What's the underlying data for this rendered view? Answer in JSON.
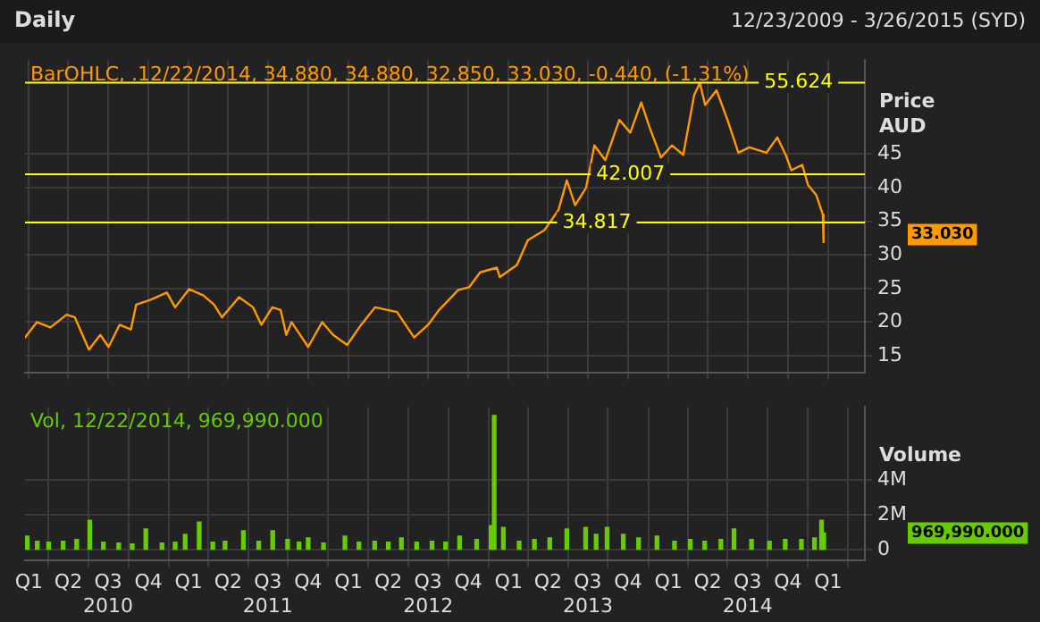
{
  "chart_data": [
    {
      "type": "line",
      "title": "Daily",
      "subtitle": "12/23/2009 - 3/26/2015 (SYD)",
      "ylabel": "Price\nAUD",
      "x": [
        "2009-12-23",
        "2010-01-19",
        "2010-02-19",
        "2010-03-28",
        "2010-04-16",
        "2010-05-18",
        "2010-06-13",
        "2010-07-02",
        "2010-07-27",
        "2010-08-22",
        "2010-09-03",
        "2010-10-05",
        "2010-11-12",
        "2010-12-01",
        "2011-01-02",
        "2011-02-03",
        "2011-02-28",
        "2011-03-18",
        "2011-04-26",
        "2011-05-28",
        "2011-06-16",
        "2011-07-11",
        "2011-07-30",
        "2011-08-12",
        "2011-08-24",
        "2011-10-01",
        "2011-11-02",
        "2011-11-27",
        "2011-12-29",
        "2012-01-30",
        "2012-03-02",
        "2012-04-21",
        "2012-05-30",
        "2012-07-01",
        "2012-07-26",
        "2012-09-08",
        "2012-10-03",
        "2012-10-28",
        "2012-12-05",
        "2012-12-12",
        "2013-01-20",
        "2013-02-14",
        "2013-03-24",
        "2013-04-25",
        "2013-05-14",
        "2013-06-02",
        "2013-06-27",
        "2013-07-16",
        "2013-08-10",
        "2013-09-11",
        "2013-10-06",
        "2013-10-31",
        "2013-11-19",
        "2013-12-15",
        "2014-01-09",
        "2014-02-04",
        "2014-03-01",
        "2014-03-14",
        "2014-03-26",
        "2014-04-21",
        "2014-05-16",
        "2014-06-10",
        "2014-07-05",
        "2014-08-13",
        "2014-09-07",
        "2014-09-26",
        "2014-10-09",
        "2014-11-03",
        "2014-11-16",
        "2014-12-05",
        "2014-12-20",
        "2014-12-21",
        "2014-12-22"
      ],
      "series": [
        {
          "color": "#ff9900",
          "values": [
            17.7,
            20.0,
            19.2,
            21.1,
            20.7,
            15.9,
            18.1,
            16.3,
            19.6,
            18.9,
            22.6,
            23.3,
            24.4,
            22.2,
            24.9,
            24.0,
            22.6,
            20.7,
            23.7,
            22.2,
            19.6,
            22.2,
            21.8,
            18.1,
            20.0,
            16.3,
            20.0,
            18.1,
            16.6,
            19.6,
            22.2,
            21.5,
            17.7,
            19.6,
            21.8,
            24.8,
            25.2,
            27.4,
            28.1,
            26.7,
            28.5,
            32.2,
            33.7,
            36.7,
            41.1,
            37.4,
            40.0,
            46.3,
            44.1,
            50.1,
            48.2,
            52.7,
            49.0,
            44.5,
            46.3,
            44.9,
            53.8,
            55.6,
            52.3,
            54.5,
            50.1,
            45.2,
            46.0,
            45.2,
            47.5,
            44.9,
            42.6,
            43.4,
            40.4,
            38.9,
            36.0,
            31.9,
            33.03
          ]
        }
      ],
      "xlim": [
        "2009-12-23",
        "2015-03-26"
      ],
      "xticks": [
        {
          "value": "2010-01-01",
          "label": null
        },
        {
          "value": "2010-04-01",
          "label": null
        },
        {
          "value": "2010-07-01",
          "label": null
        },
        {
          "value": "2010-10-01",
          "label": null
        },
        {
          "value": "2011-01-01",
          "label": null
        },
        {
          "value": "2011-04-01",
          "label": null
        },
        {
          "value": "2011-07-01",
          "label": null
        },
        {
          "value": "2011-10-01",
          "label": null
        },
        {
          "value": "2012-01-01",
          "label": null
        },
        {
          "value": "2012-04-01",
          "label": null
        },
        {
          "value": "2012-07-01",
          "label": null
        },
        {
          "value": "2012-10-01",
          "label": null
        },
        {
          "value": "2013-01-01",
          "label": null
        },
        {
          "value": "2013-04-01",
          "label": null
        },
        {
          "value": "2013-07-01",
          "label": null
        },
        {
          "value": "2013-10-01",
          "label": null
        },
        {
          "value": "2014-01-01",
          "label": null
        },
        {
          "value": "2014-04-01",
          "label": null
        },
        {
          "value": "2014-07-01",
          "label": null
        },
        {
          "value": "2014-10-01",
          "label": null
        },
        {
          "value": "2015-01-01",
          "label": null
        }
      ],
      "ylim": [
        12.5,
        59
      ],
      "yticks": [
        15,
        20,
        25,
        30,
        35,
        40,
        45
      ],
      "tick_labels": "y",
      "grid": true,
      "legend": false,
      "marker": "none",
      "line_style": "solid",
      "ref_lines": [
        {
          "axis": "y",
          "value": 55.624,
          "label": "55.624",
          "color": "#ffff00"
        },
        {
          "axis": "y",
          "value": 42.007,
          "label": "42.007",
          "color": "#ffff00"
        },
        {
          "axis": "y",
          "value": 34.817,
          "label": "34.817",
          "color": "#ffff00"
        }
      ],
      "annotations": [
        "BarOHLC, .12/22/2014, 34.880, 34.880, 32.850, 33.030, -0.440, (-1.31%)",
        "33.030"
      ]
    },
    {
      "type": "bar",
      "ylabel": "Volume",
      "x": [
        "2009-12-28",
        "2010-01-20",
        "2010-02-15",
        "2010-03-20",
        "2010-04-20",
        "2010-05-20",
        "2010-06-20",
        "2010-07-25",
        "2010-08-25",
        "2010-09-25",
        "2010-11-01",
        "2010-12-01",
        "2010-12-24",
        "2011-01-25",
        "2011-02-25",
        "2011-03-25",
        "2011-05-06",
        "2011-06-10",
        "2011-07-12",
        "2011-08-15",
        "2011-09-10",
        "2011-10-01",
        "2011-11-05",
        "2011-12-24",
        "2012-01-25",
        "2012-03-01",
        "2012-04-01",
        "2012-05-01",
        "2012-06-05",
        "2012-07-10",
        "2012-08-10",
        "2012-09-11",
        "2012-10-20",
        "2012-11-22",
        "2012-11-29",
        "2012-12-20",
        "2013-01-25",
        "2013-03-01",
        "2013-04-05",
        "2013-05-14",
        "2013-06-26",
        "2013-07-20",
        "2013-08-14",
        "2013-09-20",
        "2013-10-25",
        "2013-12-06",
        "2014-01-15",
        "2014-02-20",
        "2014-03-25",
        "2014-05-01",
        "2014-05-31",
        "2014-07-10",
        "2014-08-20",
        "2014-09-25",
        "2014-11-01",
        "2014-12-01",
        "2014-12-17",
        "2014-12-22"
      ],
      "series": [
        {
          "color": "#66cc00",
          "values": [
            800000,
            500000,
            450000,
            500000,
            600000,
            1700000,
            450000,
            400000,
            350000,
            1200000,
            400000,
            450000,
            900000,
            1600000,
            450000,
            500000,
            1100000,
            500000,
            1100000,
            600000,
            450000,
            700000,
            400000,
            800000,
            450000,
            500000,
            450000,
            700000,
            450000,
            500000,
            450000,
            800000,
            600000,
            1400000,
            7700000,
            1300000,
            500000,
            600000,
            700000,
            1200000,
            1300000,
            900000,
            1300000,
            900000,
            700000,
            800000,
            500000,
            600000,
            500000,
            600000,
            1200000,
            600000,
            500000,
            600000,
            600000,
            700000,
            1700000,
            969990
          ]
        }
      ],
      "xlim": [
        "2009-12-23",
        "2015-03-26"
      ],
      "xticks": [
        {
          "value": "2010-01-01",
          "label": "Q1"
        },
        {
          "value": "2010-04-01",
          "label": "Q2"
        },
        {
          "value": "2010-07-01",
          "label": "Q3\n2010"
        },
        {
          "value": "2010-10-01",
          "label": "Q4"
        },
        {
          "value": "2011-01-01",
          "label": "Q1"
        },
        {
          "value": "2011-04-01",
          "label": "Q2"
        },
        {
          "value": "2011-07-01",
          "label": "Q3\n2011"
        },
        {
          "value": "2011-10-01",
          "label": "Q4"
        },
        {
          "value": "2012-01-01",
          "label": "Q1"
        },
        {
          "value": "2012-04-01",
          "label": "Q2"
        },
        {
          "value": "2012-07-01",
          "label": "Q3\n2012"
        },
        {
          "value": "2012-10-01",
          "label": "Q4"
        },
        {
          "value": "2013-01-01",
          "label": "Q1"
        },
        {
          "value": "2013-04-01",
          "label": "Q2"
        },
        {
          "value": "2013-07-01",
          "label": "Q3\n2013"
        },
        {
          "value": "2013-10-01",
          "label": "Q4"
        },
        {
          "value": "2014-01-01",
          "label": "Q1"
        },
        {
          "value": "2014-04-01",
          "label": "Q2"
        },
        {
          "value": "2014-07-01",
          "label": "Q3\n2014"
        },
        {
          "value": "2014-10-01",
          "label": "Q4"
        },
        {
          "value": "2015-01-01",
          "label": "Q1"
        }
      ],
      "ylim": [
        -600000,
        8200000
      ],
      "yticks": [
        0,
        {
          "value": 2000000,
          "label": "2M"
        },
        {
          "value": 4000000,
          "label": "4M"
        }
      ],
      "grid": true,
      "legend": false,
      "annotations": [
        "Vol, 12/22/2014, 969,990.000",
        "969,990.000"
      ]
    }
  ]
}
